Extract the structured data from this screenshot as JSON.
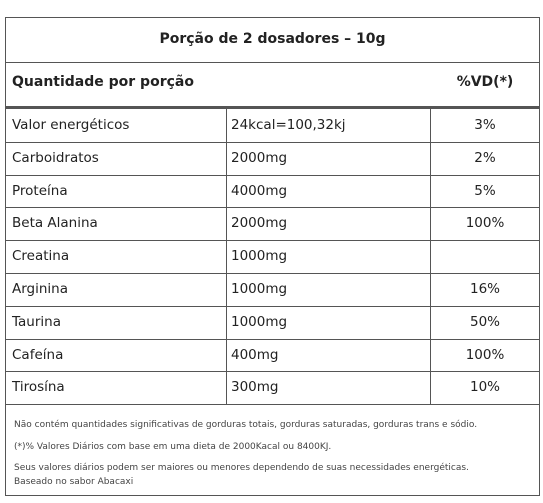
{
  "table": {
    "title": "Porção de 2 dosadores – 10g",
    "header": [
      "Quantidade por porção",
      "%VD(*)"
    ],
    "rows": [
      [
        "Valor energéticos",
        "24kcal=100,32kj",
        "3%"
      ],
      [
        "Carboidratos",
        "2000mg",
        "2%"
      ],
      [
        "Proteína",
        "4000mg",
        "5%"
      ],
      [
        "Beta Alanina",
        "2000mg",
        "100%"
      ],
      [
        "Creatina",
        "1000mg",
        null
      ],
      [
        "Arginina",
        "1000mg",
        "16%"
      ],
      [
        "Taurina",
        "1000mg",
        "50%"
      ],
      [
        "Cafeína",
        "400mg",
        "100%"
      ],
      [
        "Tirosína",
        "300mg",
        "10%"
      ]
    ],
    "notes": [
      "Não contém quantidades significativas de gorduras totais, gorduras saturadas, gorduras trans e sódio.",
      "(*)% Valores Diários com base em uma dieta de 2000Kacal ou 8400KJ.",
      "Seus valores diários podem ser maiores ou menores dependendo de suas necessidades energéticas.",
      "Baseado no sabor Abacaxi"
    ]
  }
}
